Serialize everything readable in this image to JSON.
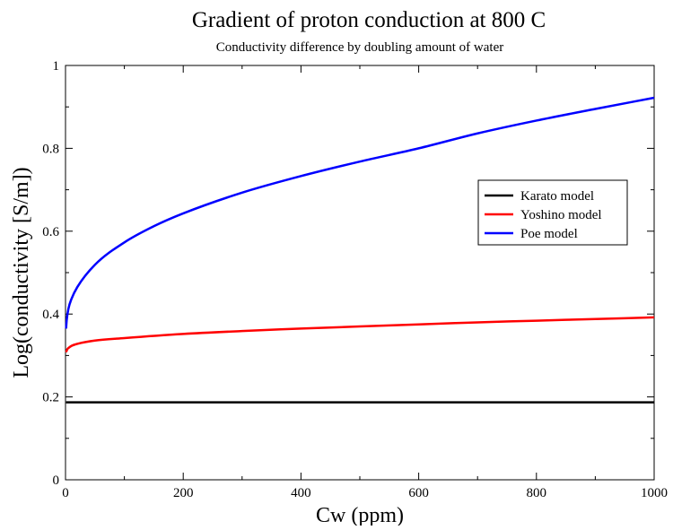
{
  "chart_data": {
    "type": "line",
    "title": "Gradient of proton conduction at 800 C",
    "subtitle": "Conductivity difference by doubling amount of water",
    "xlabel": "Cw (ppm)",
    "ylabel": "Log(conductivity [S/m])",
    "xlim": [
      0,
      1000
    ],
    "ylim": [
      0,
      1
    ],
    "xticks": [
      0,
      200,
      400,
      600,
      800,
      1000
    ],
    "xtick_labels": [
      "0",
      "200",
      "400",
      "600",
      "800",
      "1000"
    ],
    "yticks": [
      0,
      0.2,
      0.4,
      0.6,
      0.8,
      1
    ],
    "ytick_labels": [
      "0",
      "0.2",
      "0.4",
      "0.6",
      "0.8",
      "1"
    ],
    "grid": false,
    "legend_position": "right",
    "series": [
      {
        "name": "Karato model",
        "color": "#000000",
        "x": [
          1,
          10,
          50,
          100,
          200,
          300,
          400,
          500,
          600,
          700,
          800,
          900,
          1000
        ],
        "y": [
          0.187,
          0.187,
          0.187,
          0.187,
          0.187,
          0.187,
          0.187,
          0.187,
          0.187,
          0.187,
          0.187,
          0.187,
          0.187
        ]
      },
      {
        "name": "Yoshino model",
        "color": "#ff0000",
        "x": [
          1,
          3,
          5,
          10,
          20,
          50,
          100,
          200,
          300,
          400,
          500,
          600,
          700,
          800,
          900,
          1000
        ],
        "y": [
          0.308,
          0.315,
          0.318,
          0.323,
          0.328,
          0.336,
          0.342,
          0.352,
          0.359,
          0.365,
          0.37,
          0.375,
          0.38,
          0.384,
          0.388,
          0.392
        ]
      },
      {
        "name": "Poe model",
        "color": "#0000ff",
        "x": [
          1,
          2,
          5,
          10,
          20,
          50,
          100,
          150,
          200,
          300,
          400,
          500,
          600,
          700,
          800,
          900,
          1000
        ],
        "y": [
          0.365,
          0.385,
          0.413,
          0.436,
          0.465,
          0.519,
          0.573,
          0.612,
          0.643,
          0.693,
          0.733,
          0.768,
          0.8,
          0.836,
          0.867,
          0.895,
          0.922
        ]
      }
    ]
  }
}
